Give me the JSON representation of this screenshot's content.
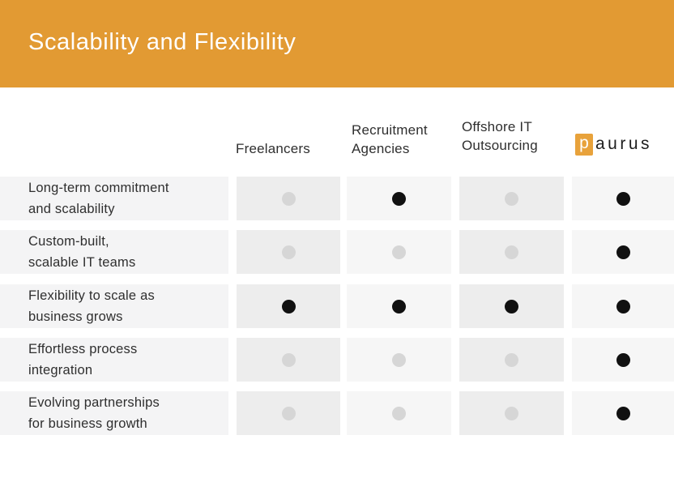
{
  "header": {
    "title": "Scalability and Flexibility"
  },
  "colors": {
    "header_bg": "#E29A33",
    "logo_orange": "#E8A23B",
    "label_bg": "#F4F4F5",
    "cell_dark_bg": "#EDEDED",
    "cell_light_bg": "#F6F6F6",
    "dot_on": "#111111",
    "dot_off": "#D6D6D6",
    "text": "#2F2F2F",
    "title_text": "#FFFFFF"
  },
  "columns": [
    {
      "label_lines": [
        "Freelancers"
      ]
    },
    {
      "label_lines": [
        "Recruitment",
        "Agencies"
      ]
    },
    {
      "label_lines": [
        "Offshore IT",
        "Outsourcing"
      ]
    },
    {
      "logo": {
        "badge": "p",
        "rest": "aurus"
      }
    }
  ],
  "rows": [
    {
      "label_lines": [
        "Long-term commitment",
        "and scalability"
      ]
    },
    {
      "label_lines": [
        "Custom-built,",
        "scalable IT teams"
      ]
    },
    {
      "label_lines": [
        "Flexibility to scale as",
        "business grows"
      ]
    },
    {
      "label_lines": [
        "Effortless process",
        "integration"
      ]
    },
    {
      "label_lines": [
        "Evolving partnerships",
        "for business growth"
      ]
    }
  ],
  "chart_data": {
    "type": "table",
    "title": "Scalability and Flexibility",
    "columns": [
      "Freelancers",
      "Recruitment Agencies",
      "Offshore IT Outsourcing",
      "Paurus"
    ],
    "rows": [
      "Long-term commitment and scalability",
      "Custom-built, scalable IT teams",
      "Flexibility to scale as business grows",
      "Effortless process integration",
      "Evolving partnerships for business growth"
    ],
    "values": [
      [
        0,
        1,
        0,
        1
      ],
      [
        0,
        0,
        0,
        1
      ],
      [
        1,
        1,
        1,
        1
      ],
      [
        0,
        0,
        0,
        1
      ],
      [
        0,
        0,
        0,
        1
      ]
    ],
    "value_legend": "1 = filled black dot (capability present), 0 = gray dot (capability absent)",
    "layout": "comparison matrix, row labels left, one dot per cell"
  }
}
